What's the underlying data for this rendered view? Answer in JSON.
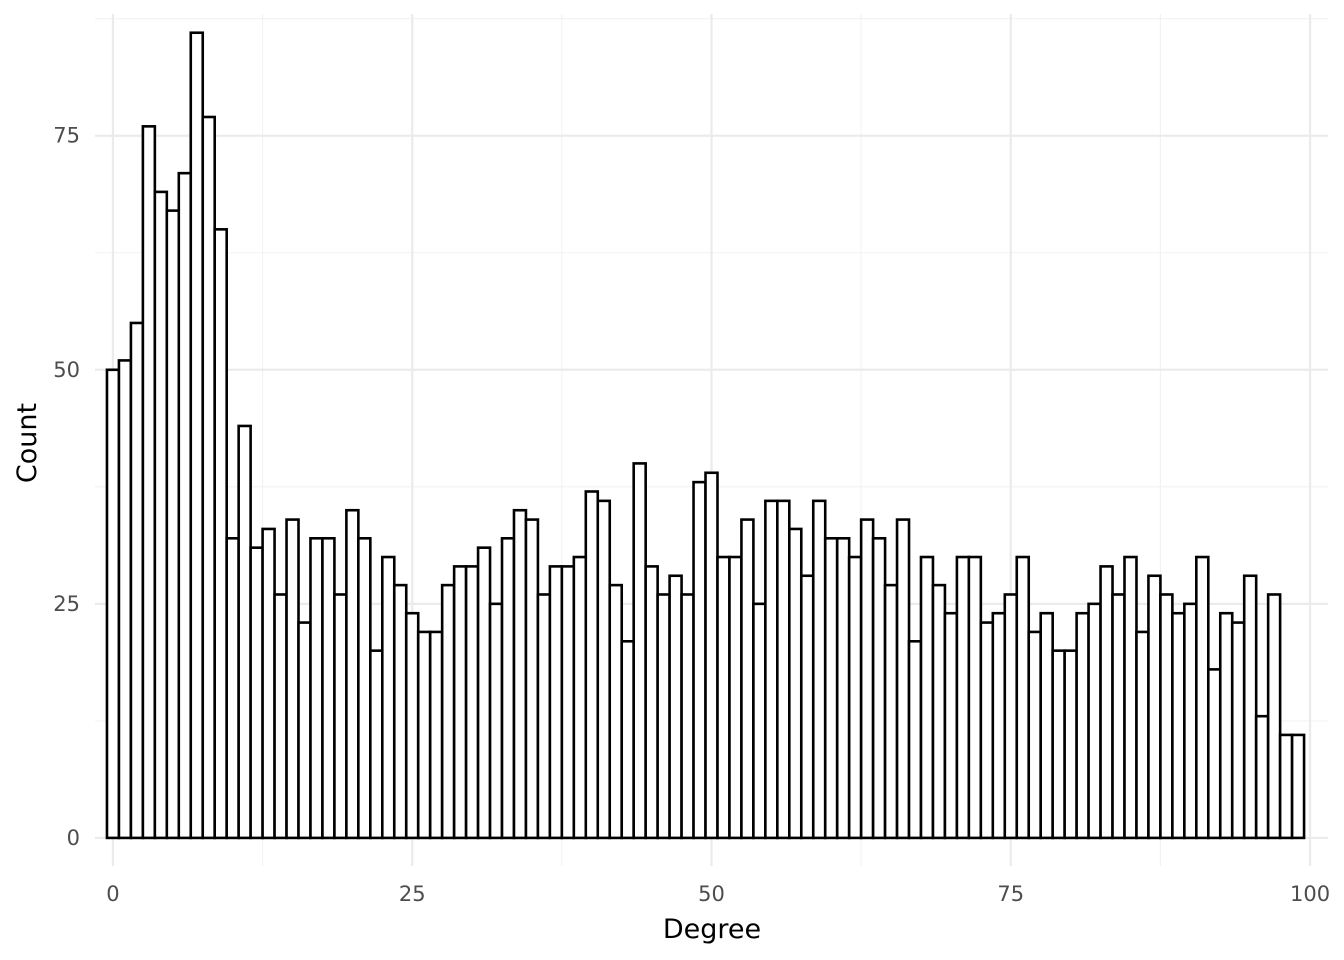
{
  "chart_data": {
    "type": "bar",
    "title": "",
    "xlabel": "Degree",
    "ylabel": "Count",
    "x": [
      0,
      1,
      2,
      3,
      4,
      5,
      6,
      7,
      8,
      9,
      10,
      11,
      12,
      13,
      14,
      15,
      16,
      17,
      18,
      19,
      20,
      21,
      22,
      23,
      24,
      25,
      26,
      27,
      28,
      29,
      30,
      31,
      32,
      33,
      34,
      35,
      36,
      37,
      38,
      39,
      40,
      41,
      42,
      43,
      44,
      45,
      46,
      47,
      48,
      49,
      50,
      51,
      52,
      53,
      54,
      55,
      56,
      57,
      58,
      59,
      60,
      61,
      62,
      63,
      64,
      65,
      66,
      67,
      68,
      69,
      70,
      71,
      72,
      73,
      74,
      75,
      76,
      77,
      78,
      79,
      80,
      81,
      82,
      83,
      84,
      85,
      86,
      87,
      88,
      89,
      90,
      91,
      92,
      93,
      94,
      95,
      96,
      97,
      98,
      99
    ],
    "values": [
      50,
      51,
      55,
      76,
      69,
      67,
      71,
      86,
      77,
      65,
      32,
      44,
      31,
      33,
      26,
      34,
      23,
      32,
      32,
      26,
      35,
      32,
      20,
      30,
      27,
      24,
      22,
      22,
      27,
      29,
      29,
      31,
      25,
      32,
      35,
      34,
      26,
      29,
      29,
      30,
      37,
      36,
      27,
      21,
      40,
      29,
      26,
      28,
      26,
      38,
      39,
      30,
      30,
      34,
      25,
      36,
      36,
      33,
      28,
      36,
      32,
      32,
      30,
      34,
      32,
      27,
      34,
      21,
      30,
      27,
      24,
      30,
      30,
      23,
      24,
      26,
      30,
      22,
      24,
      20,
      20,
      24,
      25,
      29,
      26,
      30,
      22,
      28,
      26,
      24,
      25,
      30,
      18,
      24,
      23,
      28,
      13,
      26,
      11,
      11
    ],
    "xlim": [
      -1.5,
      101.5
    ],
    "ylim": [
      -3,
      88
    ],
    "x_ticks": [
      "0",
      "25",
      "50",
      "75",
      "100"
    ],
    "y_ticks": [
      "0",
      "25",
      "50",
      "75"
    ],
    "grid": true,
    "legend": "none"
  }
}
